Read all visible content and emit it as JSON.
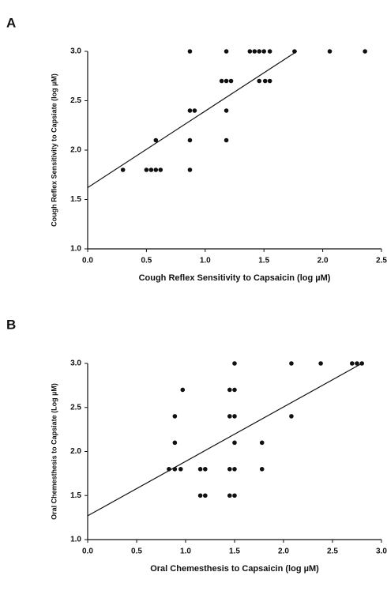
{
  "chart_data": [
    {
      "type": "scatter",
      "panel": "A",
      "x_label": "Cough Reflex Sensitivity to Capsaicin (log µM)",
      "y_label": "Cough Reflex Sensitivity to Capsiate (log µM)",
      "xlim": [
        0,
        2.5
      ],
      "xticks": [
        {
          "value": 0,
          "label": "0.0"
        },
        {
          "value": 0.5,
          "label": "0.5"
        },
        {
          "value": 1,
          "label": "1.0"
        },
        {
          "value": 1.5,
          "label": "1.5"
        },
        {
          "value": 2,
          "label": "2.0"
        },
        {
          "value": 2.5,
          "label": "2.5"
        }
      ],
      "ylim": [
        1,
        3
      ],
      "yticks": [
        {
          "value": 1,
          "label": "1.0"
        },
        {
          "value": 1.5,
          "label": "1.5"
        },
        {
          "value": 2,
          "label": "2.0"
        },
        {
          "value": 2.5,
          "label": "2.5"
        },
        {
          "value": 3,
          "label": "3.0"
        }
      ],
      "color": "#111111",
      "x": [
        0.3,
        0.5,
        0.54,
        0.58,
        0.62,
        0.58,
        0.87,
        0.87,
        0.91,
        0.87,
        0.87,
        1.18,
        1.14,
        1.18,
        1.22,
        1.18,
        1.18,
        1.38,
        1.42,
        1.46,
        1.5,
        1.55,
        1.46,
        1.51,
        1.55,
        1.76,
        2.06,
        2.36
      ],
      "values": [
        1.8,
        1.8,
        1.8,
        1.8,
        1.8,
        2.1,
        3.0,
        2.4,
        2.4,
        2.1,
        1.8,
        3.0,
        2.7,
        2.7,
        2.7,
        2.4,
        2.1,
        3.0,
        3.0,
        3.0,
        3.0,
        3.0,
        2.7,
        2.7,
        2.7,
        3.0,
        3.0,
        3.0
      ],
      "trendline": {
        "x": [
          0,
          1.78
        ],
        "values": [
          1.62,
          3.0
        ]
      }
    },
    {
      "type": "scatter",
      "panel": "B",
      "x_label": "Oral Chemesthesis to Capsaicin (log µM)",
      "y_label": "Oral Chemesthesis to Capsiate (Log µM)",
      "xlim": [
        0,
        3
      ],
      "xticks": [
        {
          "value": 0,
          "label": "0.0"
        },
        {
          "value": 0.5,
          "label": "0.5"
        },
        {
          "value": 1,
          "label": "1.0"
        },
        {
          "value": 1.5,
          "label": "1.5"
        },
        {
          "value": 2,
          "label": "2.0"
        },
        {
          "value": 2.5,
          "label": "2.5"
        },
        {
          "value": 3,
          "label": "3.0"
        }
      ],
      "ylim": [
        1,
        3
      ],
      "yticks": [
        {
          "value": 1,
          "label": "1.0"
        },
        {
          "value": 1.5,
          "label": "1.5"
        },
        {
          "value": 2,
          "label": "2.0"
        },
        {
          "value": 2.5,
          "label": "2.5"
        },
        {
          "value": 3,
          "label": "3.0"
        }
      ],
      "color": "#111111",
      "x": [
        0.83,
        0.89,
        0.95,
        0.89,
        0.89,
        0.97,
        1.15,
        1.2,
        1.15,
        1.2,
        1.45,
        1.5,
        1.45,
        1.5,
        1.5,
        1.45,
        1.5,
        1.45,
        1.5,
        1.5,
        1.78,
        1.78,
        2.08,
        2.08,
        2.38,
        2.7,
        2.75,
        2.8
      ],
      "values": [
        1.8,
        1.8,
        1.8,
        2.1,
        2.4,
        2.7,
        1.8,
        1.8,
        1.5,
        1.5,
        1.5,
        1.5,
        1.8,
        1.8,
        2.1,
        2.4,
        2.4,
        2.7,
        2.7,
        3.0,
        2.1,
        1.8,
        2.4,
        3.0,
        3.0,
        3.0,
        3.0,
        3.0
      ],
      "trendline": {
        "x": [
          0,
          2.8
        ],
        "values": [
          1.27,
          3.0
        ]
      }
    }
  ]
}
